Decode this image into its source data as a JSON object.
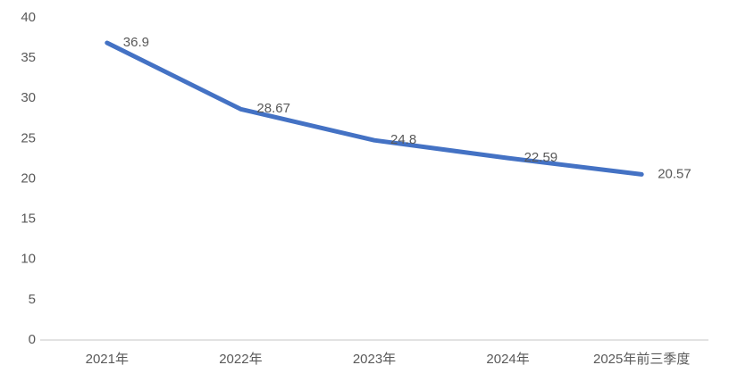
{
  "chart_data": {
    "type": "line",
    "title": "",
    "xlabel": "",
    "ylabel": "",
    "categories": [
      "2021年",
      "2022年",
      "2023年",
      "2024年",
      "2025年前三季度"
    ],
    "series": [
      {
        "name": "value",
        "values": [
          36.9,
          28.67,
          24.8,
          22.59,
          20.57
        ],
        "data_labels": [
          "36.9",
          "28.67",
          "24.8",
          "22.59",
          "20.57"
        ],
        "color": "#4472C4"
      }
    ],
    "y_axis": {
      "min": 0,
      "max": 40,
      "step": 5,
      "tick_labels": [
        "0",
        "5",
        "10",
        "15",
        "20",
        "25",
        "30",
        "35",
        "40"
      ]
    },
    "grid": false,
    "legend": "none",
    "axis_line_color": "#d9d9d9",
    "text_color": "#595959",
    "background_color": "#ffffff"
  }
}
